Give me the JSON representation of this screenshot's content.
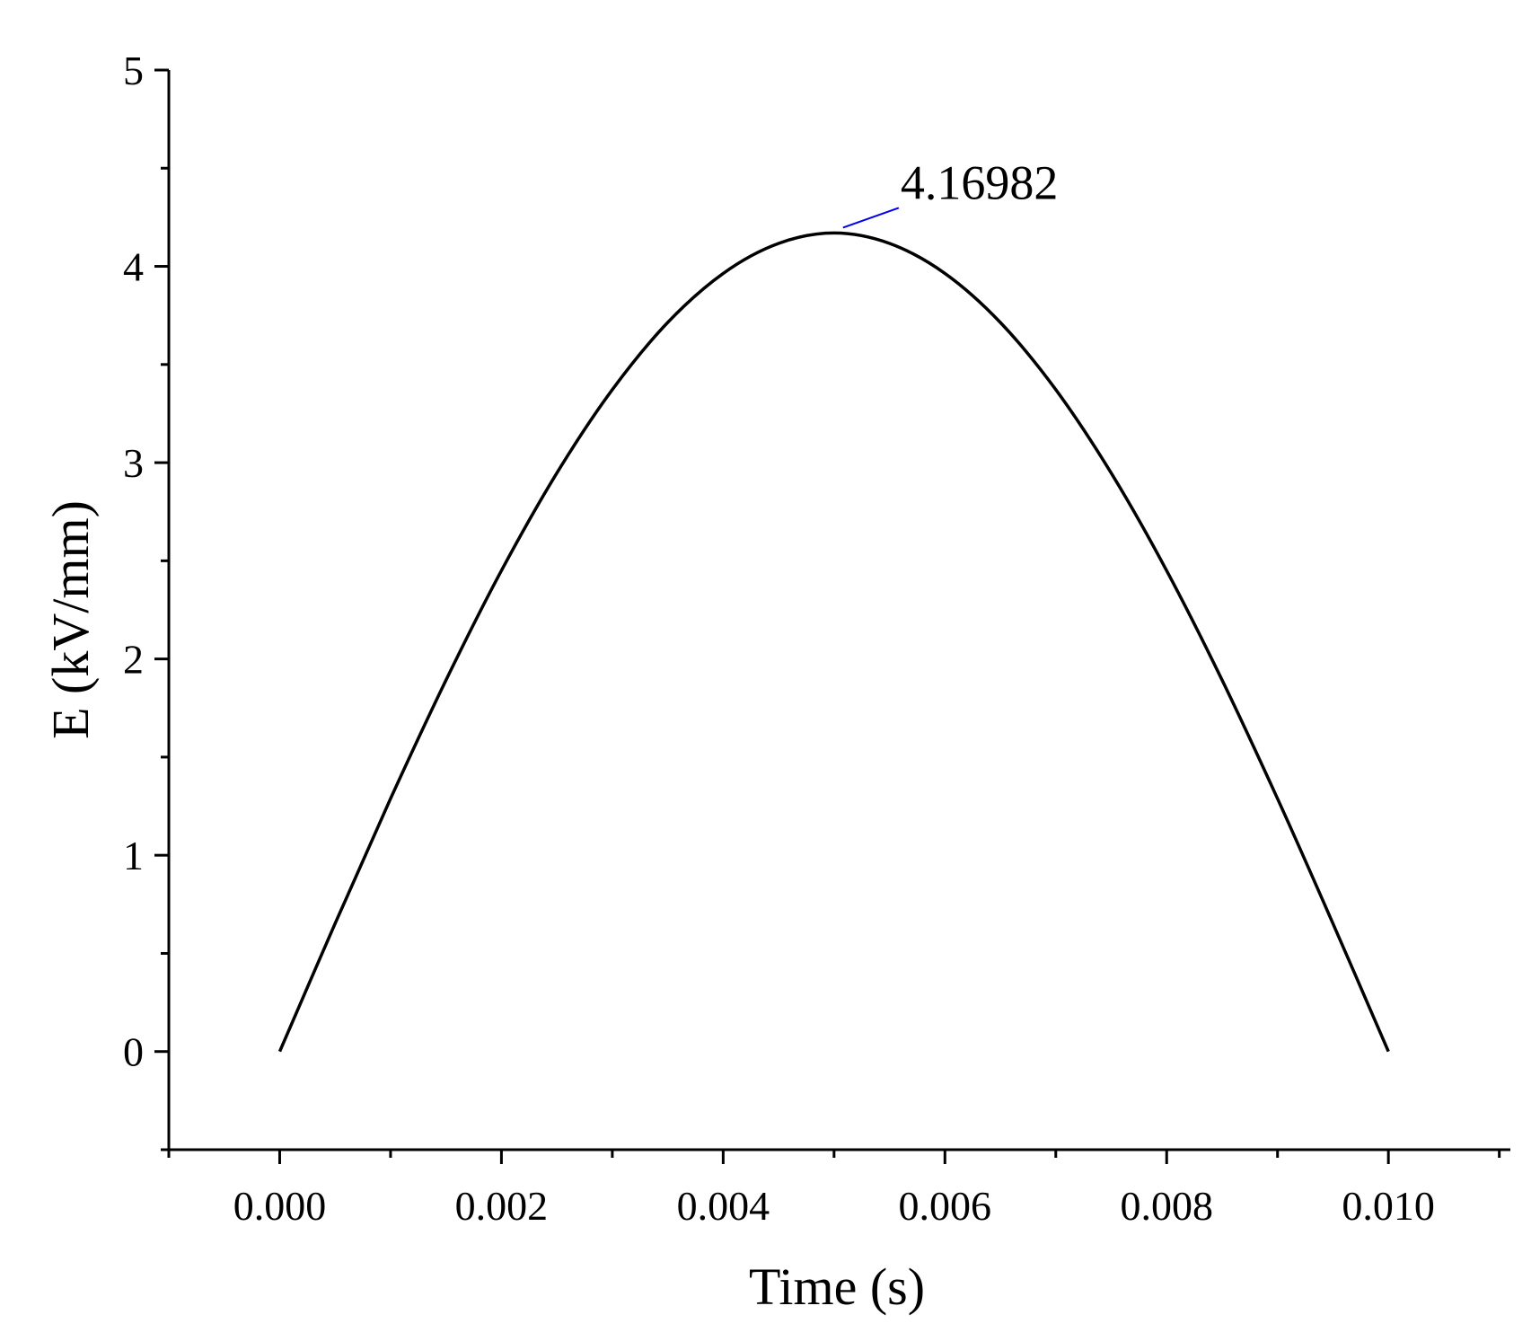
{
  "chart_data": {
    "type": "line",
    "title": "",
    "xlabel": "Time (s)",
    "ylabel": "E (kV/mm)",
    "xlim": [
      -0.001,
      0.0111
    ],
    "ylim": [
      -0.5,
      5
    ],
    "x_ticks": [
      0.0,
      0.002,
      0.004,
      0.006,
      0.008,
      0.01
    ],
    "x_tick_labels": [
      "0.000",
      "0.002",
      "0.004",
      "0.006",
      "0.008",
      "0.010"
    ],
    "x_minor_ticks": [
      -0.001,
      0.001,
      0.003,
      0.005,
      0.007,
      0.009,
      0.011
    ],
    "y_ticks": [
      0,
      1,
      2,
      3,
      4,
      5
    ],
    "y_tick_labels": [
      "0",
      "1",
      "2",
      "3",
      "4",
      "5"
    ],
    "y_minor_ticks": [
      -0.5,
      0.5,
      1.5,
      2.5,
      3.5,
      4.5
    ],
    "grid": false,
    "series": [
      {
        "color": "#000000",
        "x": [
          0.0,
          0.0005,
          0.001,
          0.0015,
          0.002,
          0.0025,
          0.003,
          0.0035,
          0.004,
          0.0045,
          0.005,
          0.0055,
          0.006,
          0.0065,
          0.007,
          0.0075,
          0.008,
          0.0085,
          0.009,
          0.0095,
          0.01
        ],
        "y": [
          0.0,
          0.652,
          1.288,
          1.892,
          2.45,
          2.947,
          3.372,
          3.714,
          3.964,
          4.117,
          4.17,
          4.117,
          3.964,
          3.714,
          3.372,
          2.947,
          2.45,
          1.892,
          1.288,
          0.652,
          0.0
        ]
      }
    ],
    "annotations": [
      {
        "text": "4.16982",
        "x": 0.005,
        "y": 4.16982,
        "color": "#0000ff"
      }
    ]
  }
}
